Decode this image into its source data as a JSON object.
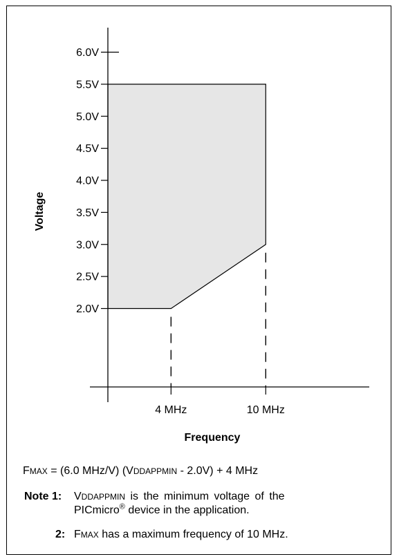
{
  "chart_data": {
    "type": "area",
    "title": "",
    "xlabel": "Frequency",
    "ylabel": "Voltage",
    "x_ticks": [
      {
        "value": 4,
        "label": "4 MHz"
      },
      {
        "value": 10,
        "label": "10 MHz"
      }
    ],
    "y_ticks": [
      {
        "value": 2.0,
        "label": "2.0V"
      },
      {
        "value": 2.5,
        "label": "2.5V"
      },
      {
        "value": 3.0,
        "label": "3.0V"
      },
      {
        "value": 3.5,
        "label": "3.5V"
      },
      {
        "value": 4.0,
        "label": "4.0V"
      },
      {
        "value": 4.5,
        "label": "4.5V"
      },
      {
        "value": 5.0,
        "label": "5.0V"
      },
      {
        "value": 5.5,
        "label": "5.5V"
      },
      {
        "value": 6.0,
        "label": "6.0V"
      }
    ],
    "region": {
      "boundary": [
        [
          0,
          2.0
        ],
        [
          4,
          2.0
        ],
        [
          10,
          3.0
        ],
        [
          10,
          5.5
        ],
        [
          0,
          5.5
        ]
      ],
      "fill_color": "#e6e6e6"
    },
    "dashed_guides": [
      {
        "x": 4,
        "from_y": 2.0
      },
      {
        "x": 10,
        "from_y": 3.0
      }
    ],
    "grid": false
  },
  "formula": {
    "lhs_sc": "F",
    "lhs_small": "MAX",
    "text_1": " = (6.0 MHz/V) (V",
    "sub_small": "DDAPPMIN",
    "text_2": " - 2.0V) + 4 MHz"
  },
  "notes": [
    {
      "label": "Note 1:",
      "line1_prefix": "V",
      "line1_small": "DDAPPMIN",
      "line1_text": " is the minimum voltage of the",
      "line2_text": "PICmicro",
      "line2_sup": "®",
      "line2_text_after": " device in the application."
    },
    {
      "label": "2:",
      "prefix": "F",
      "small": "MAX",
      "text": " has a maximum frequency of 10 MHz."
    }
  ]
}
